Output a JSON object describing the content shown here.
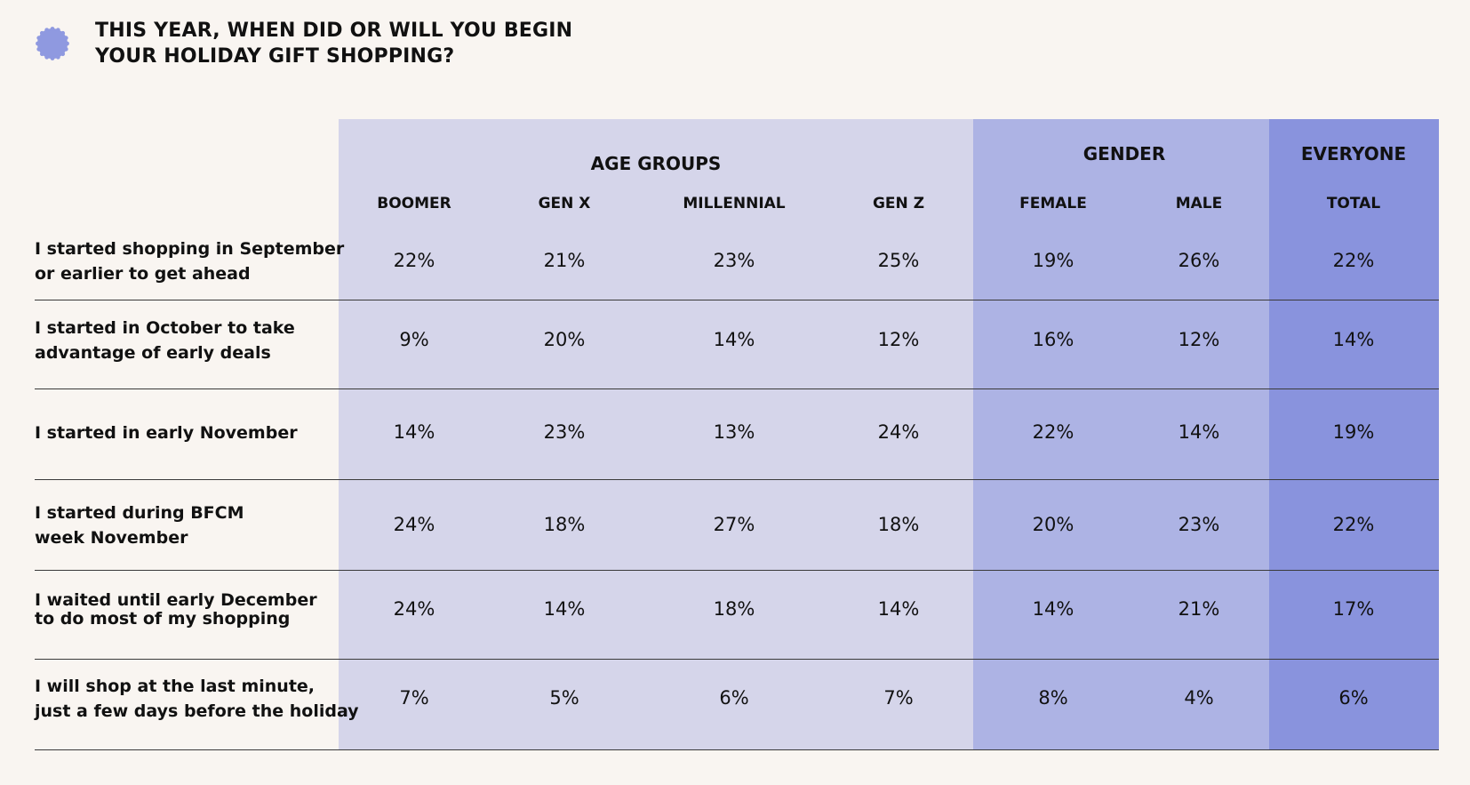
{
  "title": {
    "line1": "THIS YEAR, WHEN DID OR WILL YOU BEGIN",
    "line2": "YOUR HOLIDAY GIFT SHOPPING?"
  },
  "colors": {
    "background": "#f9f5f1",
    "badge": "#8f99e0",
    "age_bg": "#d5d5ea",
    "gender_bg": "#adb3e4",
    "total_bg": "#8993dd",
    "rule": "#3a3a3a",
    "text": "#111111"
  },
  "badge_icon": "scalloped-circle-icon",
  "groups": [
    {
      "label": "AGE GROUPS"
    },
    {
      "label": "GENDER"
    },
    {
      "label": "EVERYONE"
    }
  ],
  "columns": [
    "BOOMER",
    "GEN X",
    "MILLENNIAL",
    "GEN Z",
    "FEMALE",
    "MALE",
    "TOTAL"
  ],
  "rows": [
    {
      "label": [
        "I started shopping in September",
        "or earlier to get ahead"
      ],
      "values": [
        "22%",
        "21%",
        "23%",
        "25%",
        "19%",
        "26%",
        "22%"
      ]
    },
    {
      "label": [
        "I started in October to take",
        "advantage of early deals"
      ],
      "values": [
        "9%",
        "20%",
        "14%",
        "12%",
        "16%",
        "12%",
        "14%"
      ]
    },
    {
      "label": [
        "I started in early November"
      ],
      "values": [
        "14%",
        "23%",
        "13%",
        "24%",
        "22%",
        "14%",
        "19%"
      ]
    },
    {
      "label": [
        "I started during BFCM",
        "week November"
      ],
      "values": [
        "24%",
        "18%",
        "27%",
        "18%",
        "20%",
        "23%",
        "22%"
      ]
    },
    {
      "label": [
        "I waited until early December",
        "to do most of my shopping"
      ],
      "values": [
        "24%",
        "14%",
        "18%",
        "14%",
        "14%",
        "21%",
        "17%"
      ]
    },
    {
      "label": [
        "I  will shop at the last minute,",
        "just a few days before the holiday"
      ],
      "values": [
        "7%",
        "5%",
        "6%",
        "7%",
        "8%",
        "4%",
        "6%"
      ]
    }
  ],
  "chart_data": {
    "type": "table",
    "title": "THIS YEAR, WHEN DID OR WILL YOU BEGIN YOUR HOLIDAY GIFT SHOPPING?",
    "column_groups": [
      {
        "name": "AGE GROUPS",
        "columns": [
          "BOOMER",
          "GEN X",
          "MILLENNIAL",
          "GEN Z"
        ]
      },
      {
        "name": "GENDER",
        "columns": [
          "FEMALE",
          "MALE"
        ]
      },
      {
        "name": "EVERYONE",
        "columns": [
          "TOTAL"
        ]
      }
    ],
    "columns": [
      "BOOMER",
      "GEN X",
      "MILLENNIAL",
      "GEN Z",
      "FEMALE",
      "MALE",
      "TOTAL"
    ],
    "row_labels": [
      "I started shopping in September or earlier to get ahead",
      "I started in October to take advantage of early deals",
      "I started in early November",
      "I started during BFCM week November",
      "I waited until early December to do most of my shopping",
      "I  will shop at the last minute, just a few days before the holiday"
    ],
    "values": [
      [
        22,
        21,
        23,
        25,
        19,
        26,
        22
      ],
      [
        9,
        20,
        14,
        12,
        16,
        12,
        14
      ],
      [
        14,
        23,
        13,
        24,
        22,
        14,
        19
      ],
      [
        24,
        18,
        27,
        18,
        20,
        23,
        22
      ],
      [
        24,
        14,
        18,
        14,
        14,
        21,
        17
      ],
      [
        7,
        5,
        6,
        7,
        8,
        4,
        6
      ]
    ],
    "unit": "%"
  }
}
